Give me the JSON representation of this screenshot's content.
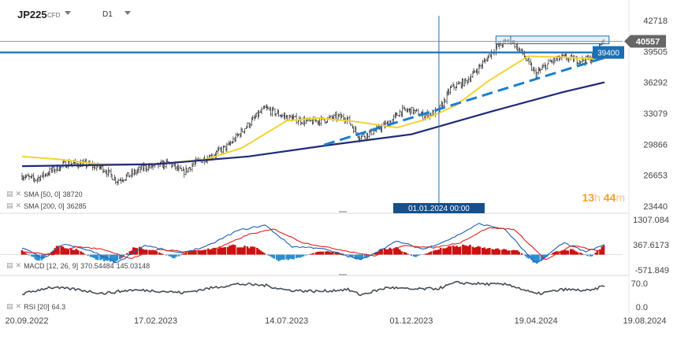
{
  "header": {
    "symbol": "JP225",
    "instrument_type": "CFD",
    "timeframe": "D1"
  },
  "indicators": {
    "sma50_label": "SMA [50, 0]",
    "sma50_value": "38720",
    "sma200_label": "SMA [200, 0]",
    "sma200_value": "36285",
    "macd_label": "MACD [12, 26, 9]",
    "macd_value1": "370.54484",
    "macd_value2": "145.03148",
    "rsi_label": "RSI [20]",
    "rsi_value": "64.3"
  },
  "timer": {
    "hours": "13",
    "h_unit": "h",
    "minutes": "44",
    "m_unit": "m"
  },
  "crosshair_label": "01.01.2024 00:00",
  "price_axis": {
    "ticks": [
      "42718",
      "39505",
      "36292",
      "33079",
      "29866",
      "26653",
      "23440"
    ],
    "current_price": "40557",
    "level_label": "39400"
  },
  "macd_axis": {
    "ticks": [
      "1307.084",
      "367.6173",
      "-571.849"
    ]
  },
  "rsi_axis": {
    "ticks": [
      "70.0",
      "0.0"
    ]
  },
  "time_axis": {
    "labels": [
      "20.09.2022",
      "17.02.2023",
      "14.07.2023",
      "01.12.2023",
      "19.04.2024",
      "19.08.2024"
    ]
  },
  "colors": {
    "sma50": "#f2d335",
    "sma200": "#1e2a78",
    "resistance_line": "#1a6fc0",
    "trendline": "#1a7fd1",
    "macd_positive": "#cc1111",
    "macd_negative": "#2a8fd0",
    "macd_line": "#1a5fb0",
    "signal_line": "#e02020",
    "rsi_line": "#454e56",
    "candles": "#222222",
    "axis_text": "#444444",
    "current_price_badge": "#666666",
    "level_badge": "#1c6fb2"
  },
  "chart_data": [
    {
      "type": "candlestick",
      "title": "JP225 CFD D1",
      "x_range": [
        "2022-09-20",
        "2024-08-19"
      ],
      "ylim": [
        23440,
        42718
      ],
      "current_price": 40557,
      "horizontal_level": 39400,
      "crosshair_x": "2024-01-01",
      "price_path": [
        [
          "2022-09-20",
          26600
        ],
        [
          "2022-10-05",
          26200
        ],
        [
          "2022-10-25",
          27200
        ],
        [
          "2022-11-10",
          27900
        ],
        [
          "2022-11-30",
          27800
        ],
        [
          "2022-12-20",
          27400
        ],
        [
          "2023-01-05",
          26100
        ],
        [
          "2023-01-20",
          26700
        ],
        [
          "2023-02-05",
          27500
        ],
        [
          "2023-02-17",
          27600
        ],
        [
          "2023-03-05",
          27900
        ],
        [
          "2023-03-20",
          26900
        ],
        [
          "2023-04-05",
          28100
        ],
        [
          "2023-04-20",
          28600
        ],
        [
          "2023-05-10",
          29700
        ],
        [
          "2023-05-25",
          31200
        ],
        [
          "2023-06-10",
          32700
        ],
        [
          "2023-06-20",
          33600
        ],
        [
          "2023-07-05",
          33000
        ],
        [
          "2023-07-14",
          32700
        ],
        [
          "2023-07-28",
          32400
        ],
        [
          "2023-08-10",
          32200
        ],
        [
          "2023-08-25",
          32400
        ],
        [
          "2023-09-10",
          32700
        ],
        [
          "2023-09-20",
          32600
        ],
        [
          "2023-10-04",
          30600
        ],
        [
          "2023-10-20",
          31200
        ],
        [
          "2023-11-05",
          32000
        ],
        [
          "2023-11-20",
          33300
        ],
        [
          "2023-12-01",
          33400
        ],
        [
          "2023-12-15",
          32800
        ],
        [
          "2024-01-01",
          33300
        ],
        [
          "2024-01-15",
          35700
        ],
        [
          "2024-02-01",
          36400
        ],
        [
          "2024-02-20",
          38300
        ],
        [
          "2024-03-05",
          39900
        ],
        [
          "2024-03-22",
          40800
        ],
        [
          "2024-04-05",
          39200
        ],
        [
          "2024-04-19",
          37100
        ],
        [
          "2024-05-05",
          38400
        ],
        [
          "2024-05-20",
          38900
        ],
        [
          "2024-06-05",
          38600
        ],
        [
          "2024-06-20",
          38700
        ],
        [
          "2024-07-05",
          40900
        ]
      ],
      "series": [
        {
          "name": "SMA [50, 0]",
          "points": [
            [
              "2022-09-20",
              28600
            ],
            [
              "2022-11-01",
              28300
            ],
            [
              "2022-12-15",
              27800
            ],
            [
              "2023-02-17",
              27800
            ],
            [
              "2023-04-15",
              28300
            ],
            [
              "2023-05-25",
              29500
            ],
            [
              "2023-07-14",
              32300
            ],
            [
              "2023-08-20",
              32600
            ],
            [
              "2023-10-01",
              32200
            ],
            [
              "2023-11-15",
              31600
            ],
            [
              "2023-12-15",
              32400
            ],
            [
              "2024-01-20",
              33900
            ],
            [
              "2024-02-25",
              36400
            ],
            [
              "2024-04-10",
              39000
            ],
            [
              "2024-05-20",
              38900
            ],
            [
              "2024-07-05",
              38700
            ]
          ]
        },
        {
          "name": "SMA [200, 0]",
          "points": [
            [
              "2022-09-20",
              27600
            ],
            [
              "2023-02-17",
              27800
            ],
            [
              "2023-06-01",
              28600
            ],
            [
              "2023-09-01",
              29800
            ],
            [
              "2023-12-01",
              30900
            ],
            [
              "2024-03-01",
              33300
            ],
            [
              "2024-05-20",
              35300
            ],
            [
              "2024-07-05",
              36300
            ]
          ]
        }
      ],
      "trendline": [
        [
          "2023-08-25",
          29800
        ],
        [
          "2024-07-10",
          39000
        ]
      ],
      "resistance_zone": [
        [
          "2024-03-05",
          40300
        ],
        [
          "2024-07-10",
          41100
        ]
      ]
    },
    {
      "type": "bar",
      "title": "MACD [12, 26, 9]",
      "ylim": [
        -571.849,
        1307.084
      ],
      "macd_value": 370.54484,
      "signal_value": 145.03148,
      "histogram_path": [
        [
          "2022-09-20",
          150
        ],
        [
          "2022-10-10",
          -250
        ],
        [
          "2022-10-30",
          300
        ],
        [
          "2022-11-20",
          200
        ],
        [
          "2022-12-10",
          -150
        ],
        [
          "2023-01-05",
          -300
        ],
        [
          "2023-01-25",
          300
        ],
        [
          "2023-02-17",
          150
        ],
        [
          "2023-03-10",
          -150
        ],
        [
          "2023-03-25",
          120
        ],
        [
          "2023-04-15",
          200
        ],
        [
          "2023-05-15",
          350
        ],
        [
          "2023-06-10",
          250
        ],
        [
          "2023-07-05",
          -250
        ],
        [
          "2023-07-25",
          -150
        ],
        [
          "2023-08-20",
          130
        ],
        [
          "2023-09-10",
          100
        ],
        [
          "2023-10-05",
          -200
        ],
        [
          "2023-10-30",
          200
        ],
        [
          "2023-11-15",
          250
        ],
        [
          "2023-12-05",
          -100
        ],
        [
          "2024-01-10",
          300
        ],
        [
          "2024-02-01",
          350
        ],
        [
          "2024-02-20",
          250
        ],
        [
          "2024-03-10",
          200
        ],
        [
          "2024-03-30",
          150
        ],
        [
          "2024-04-19",
          -350
        ],
        [
          "2024-05-10",
          100
        ],
        [
          "2024-05-30",
          200
        ],
        [
          "2024-06-20",
          -100
        ],
        [
          "2024-07-05",
          350
        ]
      ],
      "macd_path": [
        [
          "2022-09-20",
          250
        ],
        [
          "2022-10-15",
          -150
        ],
        [
          "2022-11-05",
          400
        ],
        [
          "2022-12-05",
          150
        ],
        [
          "2023-01-05",
          -300
        ],
        [
          "2023-02-05",
          350
        ],
        [
          "2023-03-15",
          50
        ],
        [
          "2023-04-15",
          300
        ],
        [
          "2023-05-20",
          900
        ],
        [
          "2023-06-20",
          1100
        ],
        [
          "2023-07-20",
          300
        ],
        [
          "2023-08-20",
          250
        ],
        [
          "2023-10-05",
          -200
        ],
        [
          "2023-11-15",
          500
        ],
        [
          "2023-12-15",
          200
        ],
        [
          "2024-01-15",
          600
        ],
        [
          "2024-02-15",
          1150
        ],
        [
          "2024-03-15",
          950
        ],
        [
          "2024-04-19",
          -350
        ],
        [
          "2024-05-20",
          450
        ],
        [
          "2024-06-15",
          100
        ],
        [
          "2024-07-05",
          370
        ]
      ],
      "signal_path": [
        [
          "2022-09-20",
          100
        ],
        [
          "2022-10-25",
          0
        ],
        [
          "2022-11-20",
          300
        ],
        [
          "2022-12-20",
          200
        ],
        [
          "2023-01-20",
          -150
        ],
        [
          "2023-02-20",
          200
        ],
        [
          "2023-03-25",
          100
        ],
        [
          "2023-04-25",
          200
        ],
        [
          "2023-06-01",
          750
        ],
        [
          "2023-06-30",
          950
        ],
        [
          "2023-08-01",
          450
        ],
        [
          "2023-09-01",
          250
        ],
        [
          "2023-10-20",
          -50
        ],
        [
          "2023-11-25",
          350
        ],
        [
          "2023-12-25",
          250
        ],
        [
          "2024-01-25",
          450
        ],
        [
          "2024-02-25",
          1000
        ],
        [
          "2024-03-25",
          950
        ],
        [
          "2024-04-30",
          -200
        ],
        [
          "2024-05-30",
          350
        ],
        [
          "2024-06-25",
          150
        ],
        [
          "2024-07-05",
          145
        ]
      ]
    },
    {
      "type": "line",
      "title": "RSI [20]",
      "ylim": [
        0,
        100
      ],
      "value": 64.3,
      "series": [
        {
          "name": "RSI [20]",
          "points": [
            [
              "2022-09-20",
              38
            ],
            [
              "2022-10-20",
              58
            ],
            [
              "2022-11-20",
              52
            ],
            [
              "2022-12-20",
              40
            ],
            [
              "2023-01-20",
              50
            ],
            [
              "2023-02-17",
              48
            ],
            [
              "2023-03-20",
              42
            ],
            [
              "2023-04-20",
              56
            ],
            [
              "2023-05-20",
              68
            ],
            [
              "2023-06-20",
              64
            ],
            [
              "2023-07-14",
              50
            ],
            [
              "2023-08-20",
              46
            ],
            [
              "2023-09-20",
              52
            ],
            [
              "2023-10-05",
              36
            ],
            [
              "2023-11-05",
              58
            ],
            [
              "2023-12-01",
              52
            ],
            [
              "2024-01-01",
              55
            ],
            [
              "2024-01-20",
              72
            ],
            [
              "2024-02-20",
              68
            ],
            [
              "2024-03-20",
              66
            ],
            [
              "2024-04-19",
              38
            ],
            [
              "2024-05-20",
              52
            ],
            [
              "2024-06-20",
              48
            ],
            [
              "2024-07-05",
              64
            ]
          ]
        }
      ]
    }
  ]
}
